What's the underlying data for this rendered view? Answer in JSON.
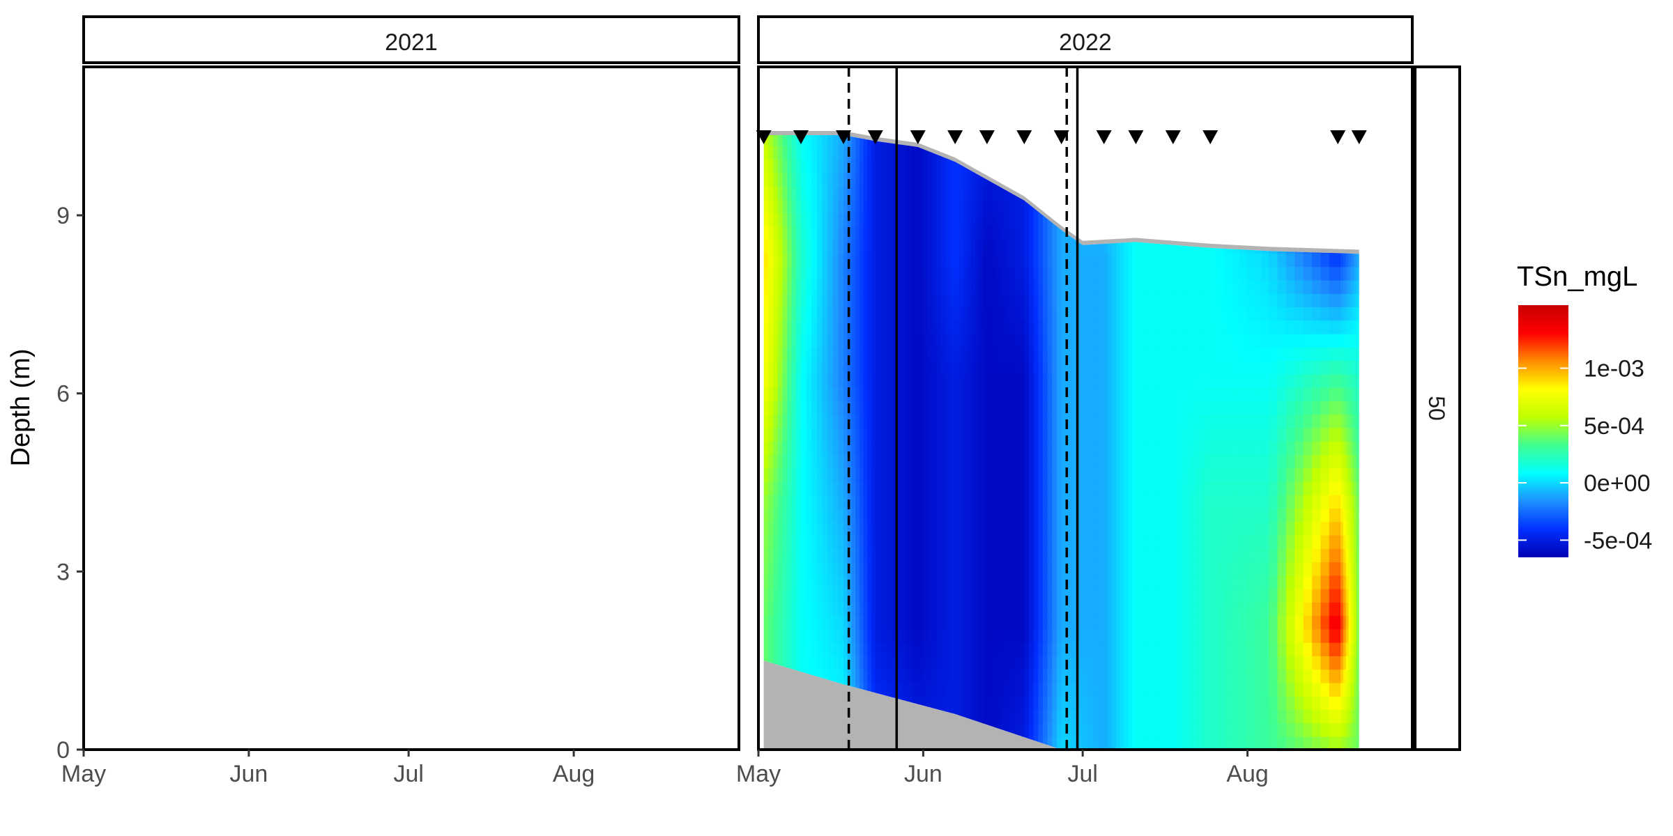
{
  "chart_data": {
    "type": "heatmap",
    "title": "",
    "xlabel": "",
    "ylabel": "Depth (m)",
    "ylim": [
      0,
      11.5
    ],
    "yticks": [
      0,
      3,
      6,
      9
    ],
    "xticks": [
      "May",
      "Jun",
      "Jul",
      "Aug"
    ],
    "facet_strip_right": "50",
    "legend": {
      "title": "TSn_mgL",
      "position": "right",
      "range": [
        -0.00065,
        0.00155
      ],
      "ticks": [
        {
          "label": "1e-03",
          "value": 0.001
        },
        {
          "label": "5e-04",
          "value": 0.0005
        },
        {
          "label": "0e+00",
          "value": 0.0
        },
        {
          "label": "-5e-04",
          "value": -0.0005
        }
      ],
      "colors": [
        "#0000b4",
        "#0030ff",
        "#1e90ff",
        "#00ffff",
        "#40ff90",
        "#c0ff00",
        "#ffff00",
        "#ff8c00",
        "#ff0000",
        "#c80000"
      ]
    },
    "panels": [
      {
        "label": "2021",
        "sampling_dates": [],
        "solid_lines": [],
        "dashed_lines": [],
        "surface": [],
        "bottom": [],
        "columns": []
      },
      {
        "label": "2022",
        "sampling_dates": [
          "2022-05-02",
          "2022-05-09",
          "2022-05-17",
          "2022-05-23",
          "2022-05-31",
          "2022-06-07",
          "2022-06-13",
          "2022-06-20",
          "2022-06-27",
          "2022-07-05",
          "2022-07-11",
          "2022-07-18",
          "2022-07-25",
          "2022-08-18",
          "2022-08-22"
        ],
        "solid_lines": [
          "2022-05-27",
          "2022-06-30"
        ],
        "dashed_lines": [
          "2022-05-18",
          "2022-06-28"
        ],
        "surface": [
          {
            "date": "2022-05-02",
            "depth": 10.35
          },
          {
            "date": "2022-05-17",
            "depth": 10.35
          },
          {
            "date": "2022-05-23",
            "depth": 10.25
          },
          {
            "date": "2022-05-31",
            "depth": 10.15
          },
          {
            "date": "2022-06-07",
            "depth": 9.9
          },
          {
            "date": "2022-06-13",
            "depth": 9.6
          },
          {
            "date": "2022-06-20",
            "depth": 9.25
          },
          {
            "date": "2022-06-27",
            "depth": 8.75
          },
          {
            "date": "2022-07-01",
            "depth": 8.5
          },
          {
            "date": "2022-07-11",
            "depth": 8.55
          },
          {
            "date": "2022-07-25",
            "depth": 8.45
          },
          {
            "date": "2022-08-05",
            "depth": 8.4
          },
          {
            "date": "2022-08-22",
            "depth": 8.35
          }
        ],
        "bottom": [
          {
            "date": "2022-05-02",
            "depth": 1.5
          },
          {
            "date": "2022-05-17",
            "depth": 1.1
          },
          {
            "date": "2022-06-07",
            "depth": 0.6
          },
          {
            "date": "2022-06-27",
            "depth": 0.0
          },
          {
            "date": "2022-08-22",
            "depth": 0.0
          }
        ],
        "columns": [
          {
            "date": "2022-05-02",
            "values": [
              0.0004,
              0.0004,
              0.0005,
              0.0008,
              0.0009,
              0.0006
            ]
          },
          {
            "date": "2022-05-09",
            "values": [
              0.0001,
              0.0001,
              0.0001,
              0.0001,
              0.0002,
              0.0001
            ]
          },
          {
            "date": "2022-05-17",
            "values": [
              0.0001,
              0.0,
              -0.0001,
              -0.0002,
              -0.0002,
              -0.0001
            ]
          },
          {
            "date": "2022-05-23",
            "values": [
              -0.0004,
              -0.0005,
              -0.0005,
              -0.0005,
              -0.0005,
              -0.0005
            ]
          },
          {
            "date": "2022-05-31",
            "values": [
              -0.0005,
              -0.0006,
              -0.0006,
              -0.0006,
              -0.0006,
              -0.0006
            ]
          },
          {
            "date": "2022-06-07",
            "values": [
              -0.0005,
              -0.0005,
              -0.0005,
              -0.0005,
              -0.0004,
              -0.0004
            ]
          },
          {
            "date": "2022-06-13",
            "values": [
              -0.0006,
              -0.0006,
              -0.0006,
              -0.0006,
              -0.0006,
              -0.0005
            ]
          },
          {
            "date": "2022-06-20",
            "values": [
              -0.0005,
              -0.0006,
              -0.0006,
              -0.0006,
              -0.0005,
              -0.0005
            ]
          },
          {
            "date": "2022-06-27",
            "values": [
              0.0,
              -0.0001,
              -0.0001,
              -0.0001,
              -0.0001,
              -0.0001
            ]
          },
          {
            "date": "2022-07-05",
            "values": [
              -0.0001,
              -0.0001,
              -0.0001,
              -0.0001,
              -0.0001,
              0.0
            ]
          },
          {
            "date": "2022-07-11",
            "values": [
              0.0001,
              0.0001,
              0.0001,
              0.0001,
              0.0001,
              0.0001
            ]
          },
          {
            "date": "2022-07-18",
            "values": [
              0.0001,
              0.0001,
              0.0001,
              0.0001,
              0.0001,
              0.0001
            ]
          },
          {
            "date": "2022-07-25",
            "values": [
              0.0002,
              0.0002,
              0.0002,
              0.0001,
              0.0001,
              0.0001
            ]
          },
          {
            "date": "2022-08-05",
            "values": [
              0.0003,
              0.0003,
              0.0002,
              0.0001,
              0.0,
              -0.0003
            ]
          },
          {
            "date": "2022-08-18",
            "values": [
              0.0005,
              0.0014,
              0.0009,
              0.0003,
              -0.0004,
              -0.0006
            ]
          },
          {
            "date": "2022-08-22",
            "values": [
              0.0004,
              0.0004,
              0.0004,
              0.0002,
              -0.0001,
              -0.0006
            ]
          }
        ]
      }
    ]
  }
}
